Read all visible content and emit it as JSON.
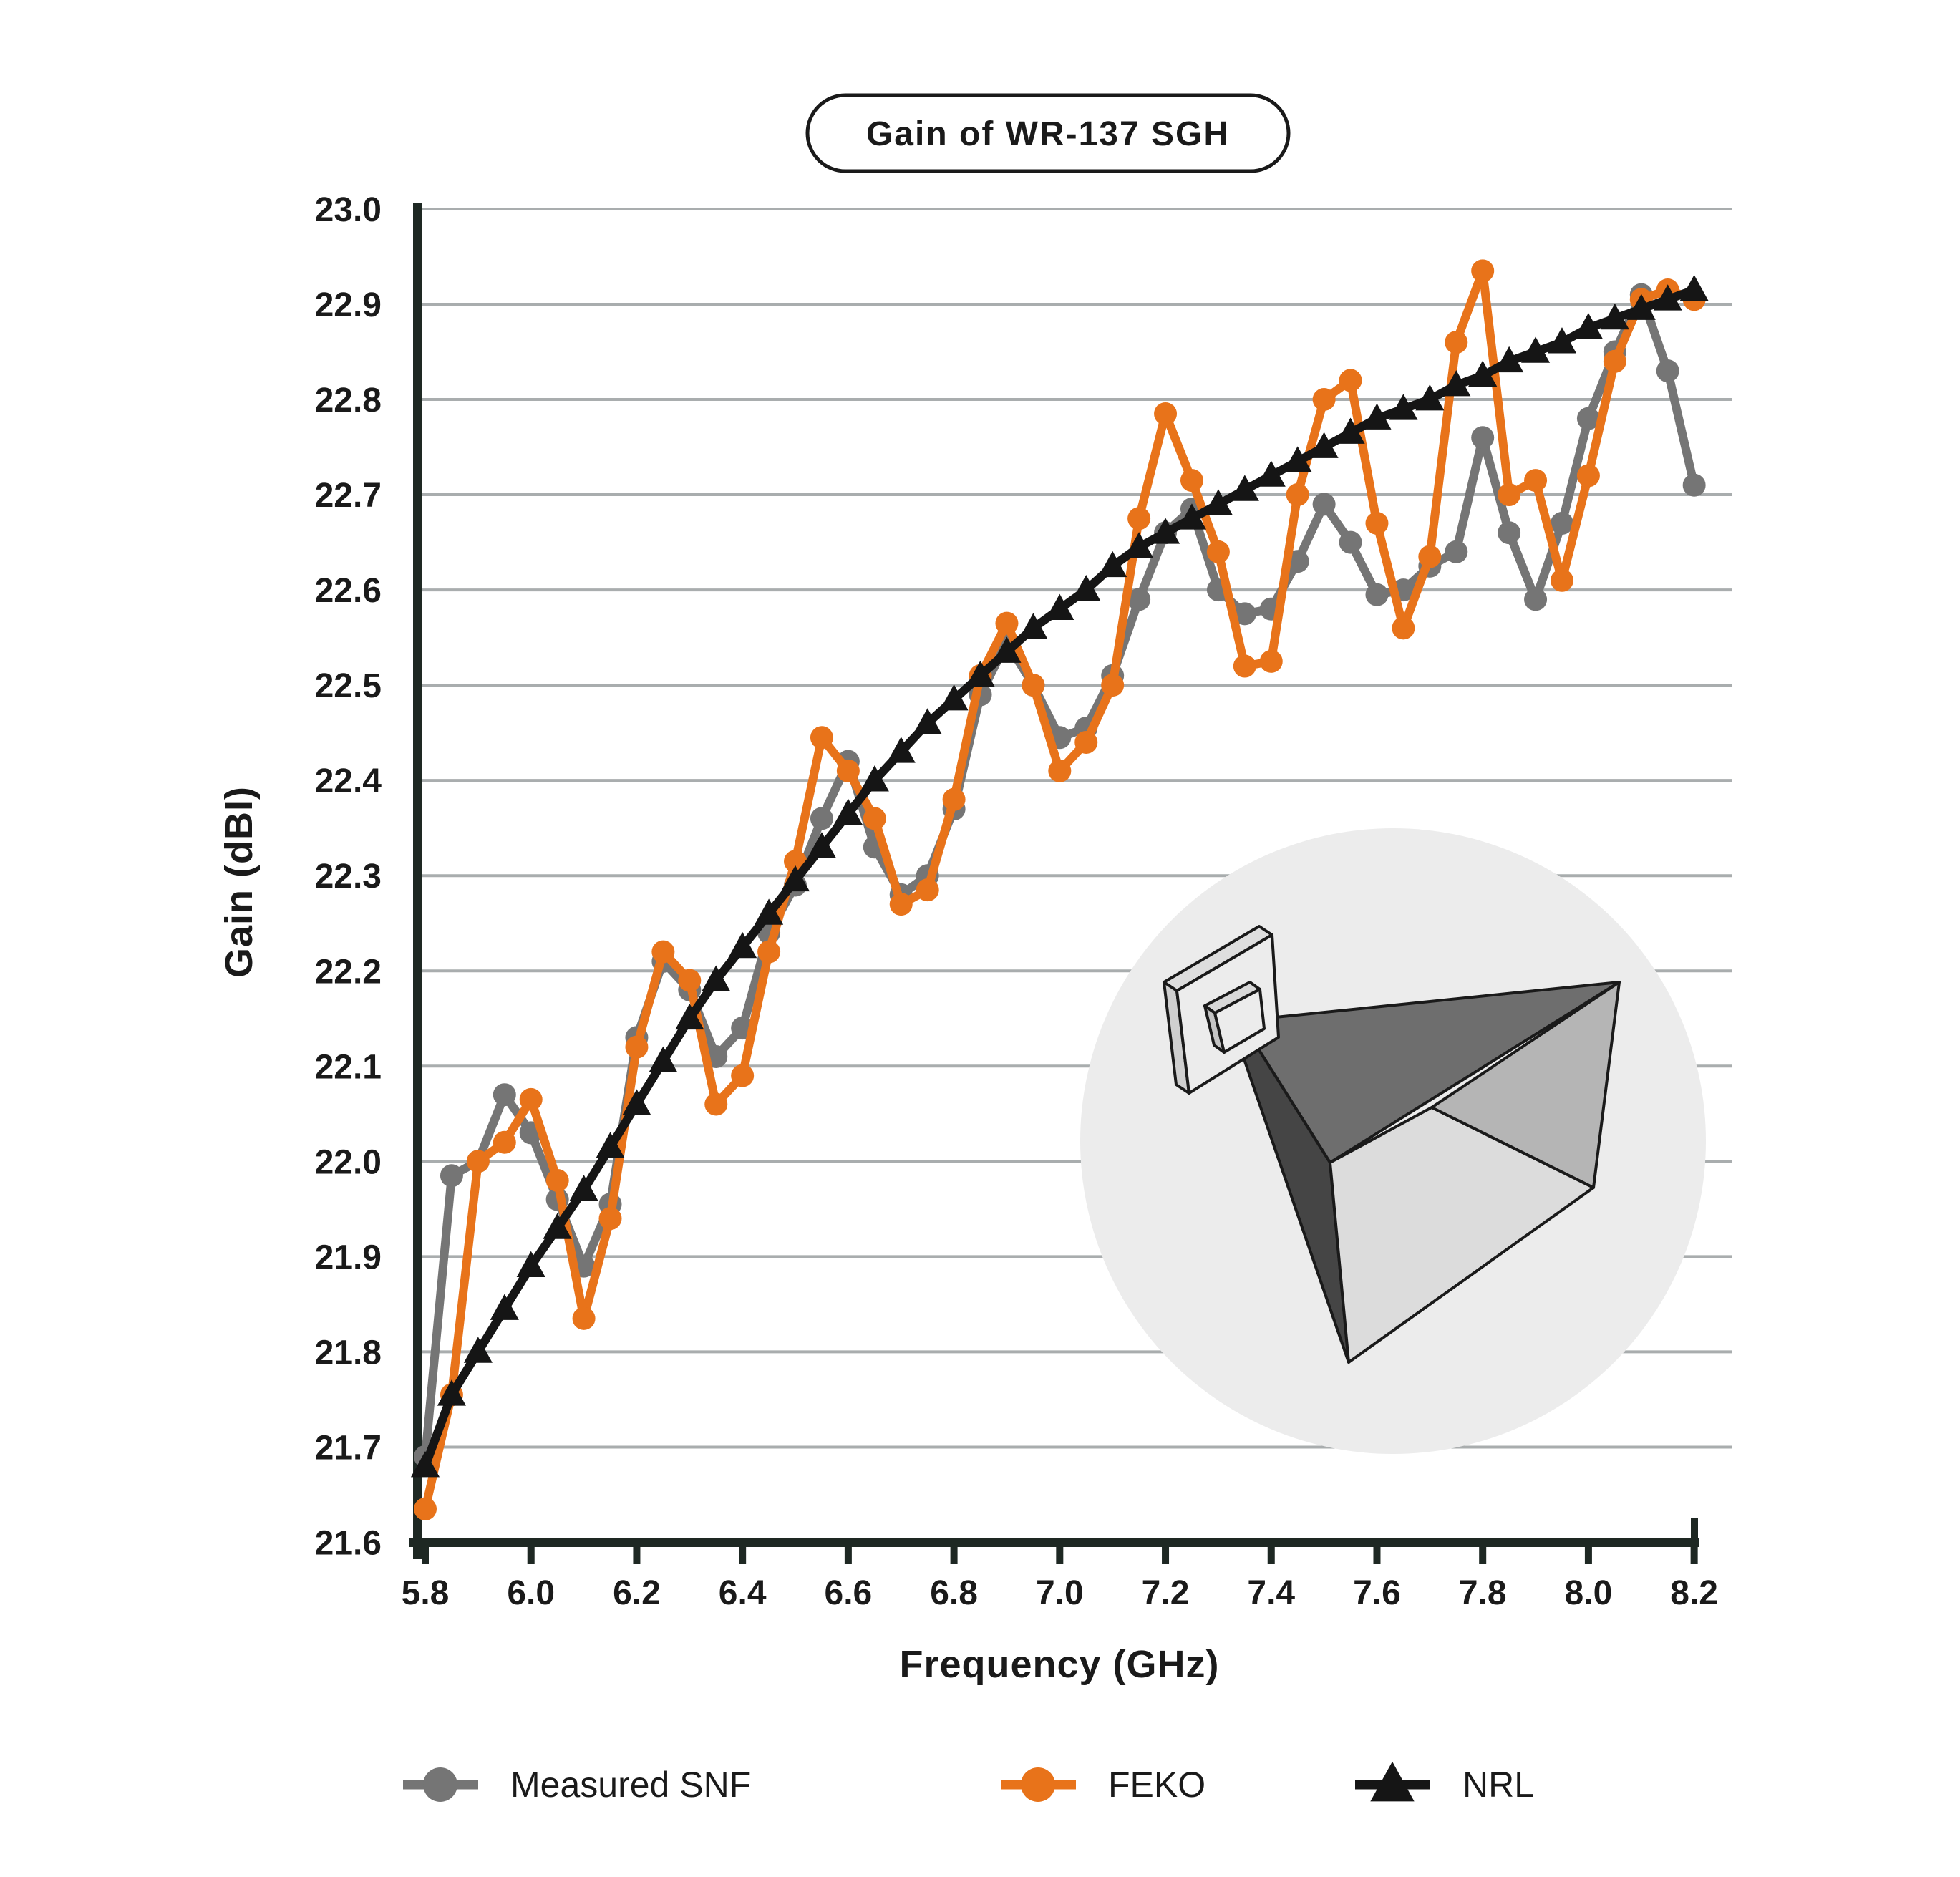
{
  "title": "Gain of WR-137 SGH",
  "chart_data": {
    "type": "line",
    "title": "Gain of WR-137 SGH",
    "xlabel": "Frequency (GHz)",
    "ylabel": "Gain (dBI)",
    "xlim": [
      5.8,
      8.2
    ],
    "ylim": [
      21.6,
      23.0
    ],
    "grid": "horizontal",
    "legend_position": "bottom",
    "x_ticks": [
      "5.8",
      "6.0",
      "6.2",
      "6.4",
      "6.6",
      "6.8",
      "7.0",
      "7.2",
      "7.4",
      "7.6",
      "7.8",
      "8.0",
      "8.2"
    ],
    "y_ticks": [
      "21.6",
      "21.7",
      "21.8",
      "21.9",
      "22.0",
      "22.1",
      "22.2",
      "22.3",
      "22.4",
      "22.5",
      "22.6",
      "22.7",
      "22.8",
      "22.9",
      "23.0"
    ],
    "x": [
      5.8,
      5.85,
      5.9,
      5.95,
      6.0,
      6.05,
      6.1,
      6.15,
      6.2,
      6.25,
      6.3,
      6.35,
      6.4,
      6.45,
      6.5,
      6.55,
      6.6,
      6.65,
      6.7,
      6.75,
      6.8,
      6.85,
      6.9,
      6.95,
      7.0,
      7.05,
      7.1,
      7.15,
      7.2,
      7.25,
      7.3,
      7.35,
      7.4,
      7.45,
      7.5,
      7.55,
      7.6,
      7.65,
      7.7,
      7.75,
      7.8,
      7.85,
      7.9,
      7.95,
      8.0,
      8.05,
      8.1,
      8.15,
      8.2
    ],
    "series": [
      {
        "name": "Measured SNF",
        "color": "#757575",
        "marker": "circle",
        "values": [
          21.69,
          21.985,
          22.0,
          22.07,
          22.03,
          21.96,
          21.89,
          21.955,
          22.13,
          22.21,
          22.18,
          22.11,
          22.14,
          22.24,
          22.29,
          22.36,
          22.42,
          22.33,
          22.28,
          22.3,
          22.37,
          22.49,
          22.545,
          22.5,
          22.445,
          22.455,
          22.51,
          22.59,
          22.66,
          22.685,
          22.6,
          22.575,
          22.58,
          22.63,
          22.69,
          22.65,
          22.595,
          22.6,
          22.625,
          22.64,
          22.76,
          22.66,
          22.59,
          22.67,
          22.78,
          22.85,
          22.91,
          22.83,
          22.71
        ]
      },
      {
        "name": "FEKO",
        "color": "#e8731a",
        "marker": "circle",
        "values": [
          21.635,
          21.755,
          22.0,
          22.02,
          22.065,
          21.98,
          21.835,
          21.94,
          22.12,
          22.22,
          22.19,
          22.06,
          22.09,
          22.22,
          22.315,
          22.445,
          22.41,
          22.36,
          22.27,
          22.285,
          22.38,
          22.51,
          22.565,
          22.5,
          22.41,
          22.44,
          22.5,
          22.675,
          22.785,
          22.715,
          22.64,
          22.52,
          22.525,
          22.7,
          22.8,
          22.82,
          22.67,
          22.56,
          22.635,
          22.86,
          22.935,
          22.7,
          22.715,
          22.61,
          22.72,
          22.84,
          22.905,
          22.915,
          22.905
        ]
      },
      {
        "name": "NRL",
        "color": "#151515",
        "marker": "triangle",
        "values": [
          21.68,
          21.755,
          21.8,
          21.845,
          21.89,
          21.93,
          21.97,
          22.015,
          22.06,
          22.105,
          22.15,
          22.19,
          22.225,
          22.26,
          22.295,
          22.33,
          22.365,
          22.4,
          22.43,
          22.46,
          22.485,
          22.51,
          22.535,
          22.56,
          22.58,
          22.6,
          22.625,
          22.645,
          22.66,
          22.675,
          22.69,
          22.705,
          22.72,
          22.735,
          22.75,
          22.765,
          22.78,
          22.79,
          22.8,
          22.815,
          22.825,
          22.84,
          22.85,
          22.86,
          22.875,
          22.885,
          22.895,
          22.905,
          22.915
        ]
      }
    ],
    "inset": {
      "description": "3D illustration of a pyramidal standard gain horn antenna inside a light gray circle",
      "background": "#ececec"
    }
  },
  "colors": {
    "gridline": "#a9adae",
    "axis": "#1e2823",
    "text": "#1a1a1a",
    "background": "#ffffff"
  }
}
